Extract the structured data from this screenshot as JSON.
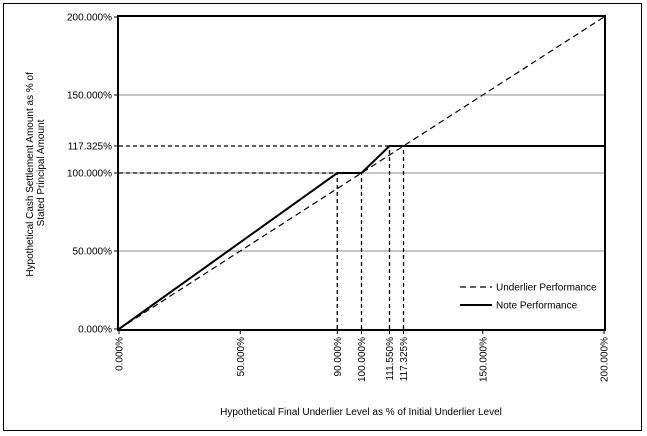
{
  "chart_data": {
    "type": "line",
    "xlabel": "Hypothetical Final Underlier Level as % of Initial Underlier Level",
    "ylabel": [
      "Hypothetical Cash Settlement Amount as % of",
      "Stated Principal Amount"
    ],
    "xlim": [
      0,
      200
    ],
    "ylim": [
      0,
      200
    ],
    "x_ticks": [
      {
        "value": 0,
        "label": "0.000%"
      },
      {
        "value": 50,
        "label": "50.000%"
      },
      {
        "value": 90,
        "label": "90.000%"
      },
      {
        "value": 100,
        "label": "100.000%"
      },
      {
        "value": 111.55,
        "label": "111.550%"
      },
      {
        "value": 117.325,
        "label": "117.325%"
      },
      {
        "value": 150,
        "label": "150.000%"
      },
      {
        "value": 200,
        "label": "200.000%"
      }
    ],
    "y_ticks": [
      {
        "value": 0,
        "label": "0.000%"
      },
      {
        "value": 50,
        "label": "50.000%"
      },
      {
        "value": 100,
        "label": "100.000%"
      },
      {
        "value": 117.325,
        "label": "117.325%"
      },
      {
        "value": 150,
        "label": "150.000%"
      },
      {
        "value": 200,
        "label": "200.000%"
      }
    ],
    "gridlines_y": [
      50,
      100,
      150
    ],
    "grid": true,
    "legend_position": "lower-right",
    "series": [
      {
        "name": "Underlier Performance",
        "style": "dashed",
        "color": "#000000",
        "points": [
          [
            0,
            0
          ],
          [
            200,
            200
          ]
        ]
      },
      {
        "name": "Note Performance",
        "style": "solid",
        "color": "#000000",
        "points": [
          [
            0,
            0
          ],
          [
            90,
            100
          ],
          [
            100,
            100
          ],
          [
            111.55,
            117.325
          ],
          [
            200,
            117.325
          ]
        ]
      }
    ],
    "reference_lines": [
      {
        "points": [
          [
            0,
            100
          ],
          [
            90,
            100
          ]
        ]
      },
      {
        "points": [
          [
            90,
            0
          ],
          [
            90,
            100
          ]
        ]
      },
      {
        "points": [
          [
            100,
            0
          ],
          [
            100,
            100
          ]
        ]
      },
      {
        "points": [
          [
            0,
            117.325
          ],
          [
            111.55,
            117.325
          ]
        ]
      },
      {
        "points": [
          [
            111.55,
            0
          ],
          [
            111.55,
            117.325
          ]
        ]
      },
      {
        "points": [
          [
            117.325,
            0
          ],
          [
            117.325,
            117.325
          ]
        ]
      }
    ]
  }
}
